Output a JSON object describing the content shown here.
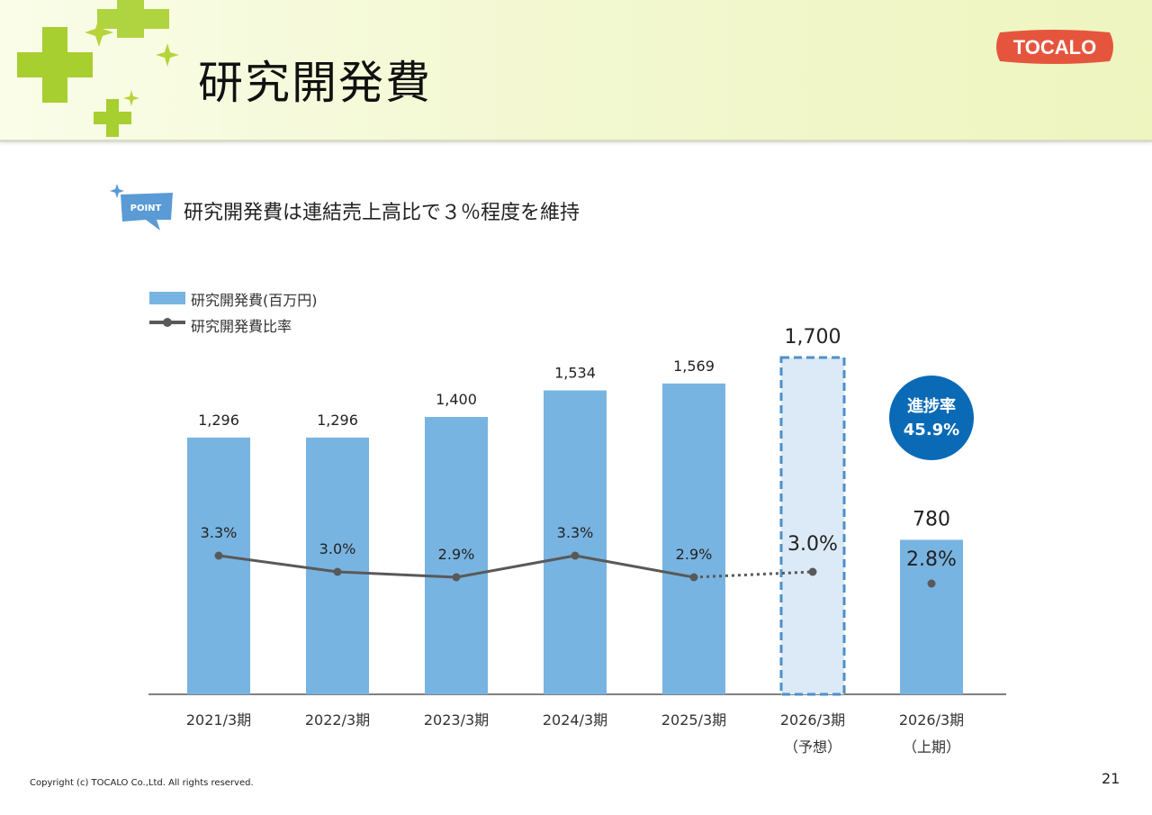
{
  "header": {
    "title": "研究開発費"
  },
  "logo": {
    "text": "TOCALO"
  },
  "point": {
    "badge_label": "POINT",
    "text": "研究開発費は連結売上高比で３％程度を維持"
  },
  "legend": {
    "bar_label": "研究開発費(百万円)",
    "line_label": "研究開発費比率"
  },
  "progress_badge": {
    "label": "進捗率",
    "value": "45.9%"
  },
  "footer": {
    "copyright": "Copyright (c) TOCALO Co.,Ltd. All rights reserved.",
    "page_number": "21"
  },
  "colors": {
    "bar": "#78b4e1",
    "forecast_fill": "#dbeaf6",
    "forecast_border": "#4f8fc9",
    "line": "#595959",
    "badge": "#0a6ab6",
    "logo": "#e5553d"
  },
  "chart_data": {
    "type": "bar",
    "categories": [
      "2021/3期",
      "2022/3期",
      "2023/3期",
      "2024/3期",
      "2025/3期",
      "2026/3期",
      "2026/3期"
    ],
    "category_sublabels": [
      "",
      "",
      "",
      "",
      "",
      "（予想）",
      "（上期）"
    ],
    "ylim": [
      0,
      1800
    ],
    "series": [
      {
        "name": "研究開発費(百万円)",
        "type": "bar",
        "values": [
          1296,
          1296,
          1400,
          1534,
          1569,
          1700,
          780
        ],
        "value_labels": [
          "1,296",
          "1,296",
          "1,400",
          "1,534",
          "1,569",
          "1,700",
          "780"
        ],
        "styles": [
          "actual",
          "actual",
          "actual",
          "actual",
          "actual",
          "forecast",
          "actual"
        ]
      },
      {
        "name": "研究開発費比率",
        "type": "line",
        "values": [
          3.3,
          3.0,
          2.9,
          3.3,
          2.9,
          3.0,
          2.8
        ],
        "value_labels": [
          "3.3%",
          "3.0%",
          "2.9%",
          "3.3%",
          "2.9%",
          "3.0%",
          "2.8%"
        ],
        "line_segments": [
          "solid",
          "solid",
          "solid",
          "solid",
          "dotted",
          "none"
        ],
        "ratio_range": [
          2.0,
          4.0
        ]
      }
    ],
    "title": "",
    "xlabel": "",
    "ylabel": ""
  }
}
